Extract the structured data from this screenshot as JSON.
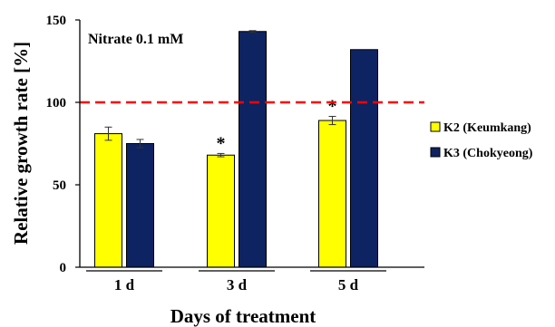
{
  "chart_data": {
    "type": "bar",
    "annotation": "Nitrate 0.1 mM",
    "xlabel": "Days of treatment",
    "ylabel": "Relative growth rate [%]",
    "categories": [
      "1 d",
      "3 d",
      "5 d"
    ],
    "ylim": [
      0,
      150
    ],
    "yticks": [
      0,
      50,
      100,
      150
    ],
    "reference_line": 100,
    "legend_position": "right",
    "grid": false,
    "series": [
      {
        "name": "K2 (Keumkang)",
        "color": "#ffff00",
        "values": [
          81,
          68,
          89
        ],
        "errors": [
          4,
          1,
          2.5
        ],
        "significance": [
          "",
          "*",
          "*"
        ]
      },
      {
        "name": "K3 (Chokyeong)",
        "color": "#0e2361",
        "values": [
          75,
          143,
          132
        ],
        "errors": [
          2.5,
          0.5,
          0
        ],
        "significance": [
          "",
          "",
          ""
        ]
      }
    ],
    "reference_line_color": "#ff0000"
  }
}
